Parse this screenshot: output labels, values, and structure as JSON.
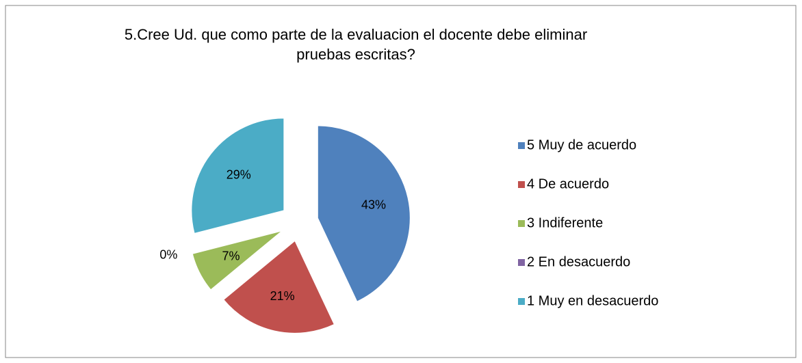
{
  "chart_data": {
    "type": "pie",
    "title": "5.Cree Ud. que como parte de la evaluacion el docente debe eliminar pruebas escritas?",
    "categories": [
      "5 Muy de acuerdo",
      "4 De acuerdo",
      "3 Indiferente",
      "2 En desacuerdo",
      "1 Muy en desacuerdo"
    ],
    "values": [
      43,
      21,
      7,
      0,
      29
    ],
    "value_labels": [
      "43%",
      "21%",
      "7%",
      "0%",
      "29%"
    ],
    "colors": [
      "#4f81bd",
      "#c0504d",
      "#9bbb59",
      "#8064a2",
      "#4bacc6"
    ],
    "legend": "right"
  }
}
